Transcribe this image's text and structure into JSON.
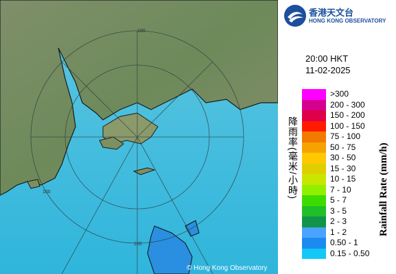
{
  "header": {
    "logo_cn": "香港天文台",
    "logo_en": "HONG KONG OBSERVATORY"
  },
  "time": "20:00 HKT",
  "date": "11-02-2025",
  "legend": {
    "title_cn": "降雨率(毫米/小時)",
    "title_en": "Rainfall Rate (mm/h)",
    "items": [
      {
        "label": ">300",
        "color": "#ff00ff"
      },
      {
        "label": "200 - 300",
        "color": "#d4008f"
      },
      {
        "label": "150 - 200",
        "color": "#e0004a"
      },
      {
        "label": "100 - 150",
        "color": "#ff1a00"
      },
      {
        "label": "75 - 100",
        "color": "#f27a00"
      },
      {
        "label": "50 - 75",
        "color": "#f5a300"
      },
      {
        "label": "30 - 50",
        "color": "#ffc800"
      },
      {
        "label": "15 - 30",
        "color": "#dfcf00"
      },
      {
        "label": "10 - 15",
        "color": "#c8e600"
      },
      {
        "label": "7 - 10",
        "color": "#90f000"
      },
      {
        "label": "5 - 7",
        "color": "#3ddc00"
      },
      {
        "label": "3 - 5",
        "color": "#1fbf2a"
      },
      {
        "label": "2 - 3",
        "color": "#10944a"
      },
      {
        "label": "1 - 2",
        "color": "#4aa3ff"
      },
      {
        "label": "0.50 - 1",
        "color": "#1a8cf0"
      },
      {
        "label": "0.15 - 0.50",
        "color": "#14c8f5"
      }
    ]
  },
  "map": {
    "ring_labels": [
      "100",
      "100",
      "100"
    ],
    "copyright": "© Hong Kong Observatory"
  }
}
